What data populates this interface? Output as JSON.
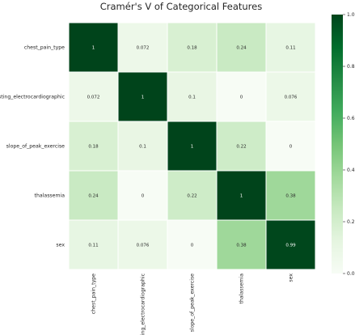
{
  "chart_data": {
    "type": "heatmap",
    "title": "Cramér's V of Categorical Features",
    "rows": [
      "chest_pain_type",
      "resting_electrocardiographic",
      "slope_of_peak_exercise",
      "thalassemia",
      "sex"
    ],
    "cols": [
      "chest_pain_type",
      "resting_electrocardiographic",
      "slope_of_peak_exercise",
      "thalassemia",
      "sex"
    ],
    "values": [
      [
        1,
        0.072,
        0.18,
        0.24,
        0.11
      ],
      [
        0.072,
        1,
        0.1,
        0,
        0.076
      ],
      [
        0.18,
        0.1,
        1,
        0.22,
        0
      ],
      [
        0.24,
        0,
        0.22,
        1,
        0.38
      ],
      [
        0.11,
        0.076,
        0,
        0.38,
        0.99
      ]
    ],
    "value_labels": [
      [
        "1",
        "0.072",
        "0.18",
        "0.24",
        "0.11"
      ],
      [
        "0.072",
        "1",
        "0.1",
        "0",
        "0.076"
      ],
      [
        "0.18",
        "0.1",
        "1",
        "0.22",
        "0"
      ],
      [
        "0.24",
        "0",
        "0.22",
        "1",
        "0.38"
      ],
      [
        "0.11",
        "0.076",
        "0",
        "0.38",
        "0.99"
      ]
    ],
    "vmin": 0,
    "vmax": 1,
    "colormap": "Greens",
    "colorbar": {
      "ticks": [
        0.0,
        0.2,
        0.4,
        0.6,
        0.8,
        1.0
      ],
      "tick_labels": [
        "0.0",
        "0.2",
        "0.4",
        "0.6",
        "0.8",
        "1.0"
      ]
    }
  }
}
